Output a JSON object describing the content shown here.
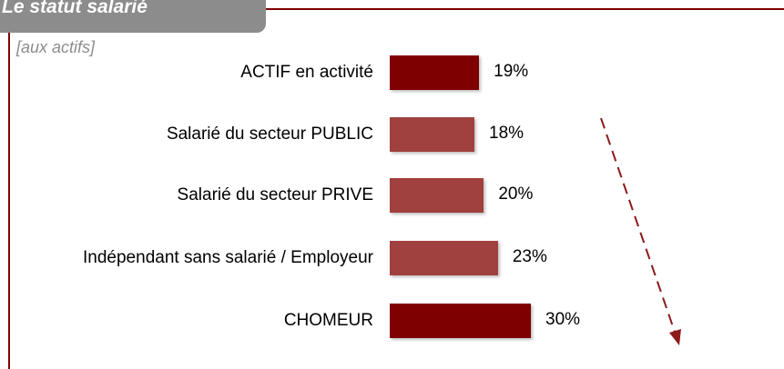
{
  "header": {
    "title": "Le statut salarié",
    "subtitle": "[aux actifs]"
  },
  "chart_data": {
    "type": "bar",
    "orientation": "horizontal",
    "categories": [
      "ACTIF en activité",
      "Salarié du secteur PUBLIC",
      "Salarié du secteur PRIVE",
      "Indépendant sans salarié / Employeur",
      "CHOMEUR"
    ],
    "values": [
      19,
      18,
      20,
      23,
      30
    ],
    "value_labels": [
      "19%",
      "18%",
      "20%",
      "23%",
      "30%"
    ],
    "colors": [
      "#7f0000",
      "#a0403f",
      "#a0403f",
      "#a0403f",
      "#7f0000"
    ]
  }
}
